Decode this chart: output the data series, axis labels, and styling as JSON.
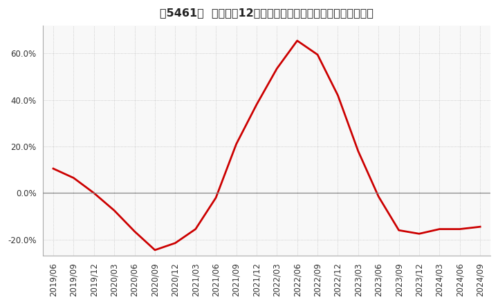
{
  "title": "［5461］  売上高の12か月移動合計の対前年同期増減率の推移",
  "line_color": "#cc0000",
  "bg_color": "#ffffff",
  "plot_bg_color": "#f8f8f8",
  "grid_color": "#aaaaaa",
  "zero_line_color": "#888888",
  "ylim": [
    -0.27,
    0.72
  ],
  "yticks": [
    -0.2,
    0.0,
    0.2,
    0.4,
    0.6
  ],
  "dates": [
    "2019/06",
    "2019/09",
    "2019/12",
    "2020/03",
    "2020/06",
    "2020/09",
    "2020/12",
    "2021/03",
    "2021/06",
    "2021/09",
    "2021/12",
    "2022/03",
    "2022/06",
    "2022/09",
    "2022/12",
    "2023/03",
    "2023/06",
    "2023/09",
    "2023/12",
    "2024/03",
    "2024/06",
    "2024/09"
  ],
  "values": [
    0.105,
    0.065,
    0.0,
    -0.075,
    -0.165,
    -0.245,
    -0.215,
    -0.155,
    -0.02,
    0.21,
    0.38,
    0.535,
    0.655,
    0.595,
    0.42,
    0.18,
    -0.015,
    -0.16,
    -0.175,
    -0.155,
    -0.155,
    -0.145
  ],
  "title_fontsize": 11.5,
  "tick_fontsize": 8.5,
  "linewidth": 2.0
}
